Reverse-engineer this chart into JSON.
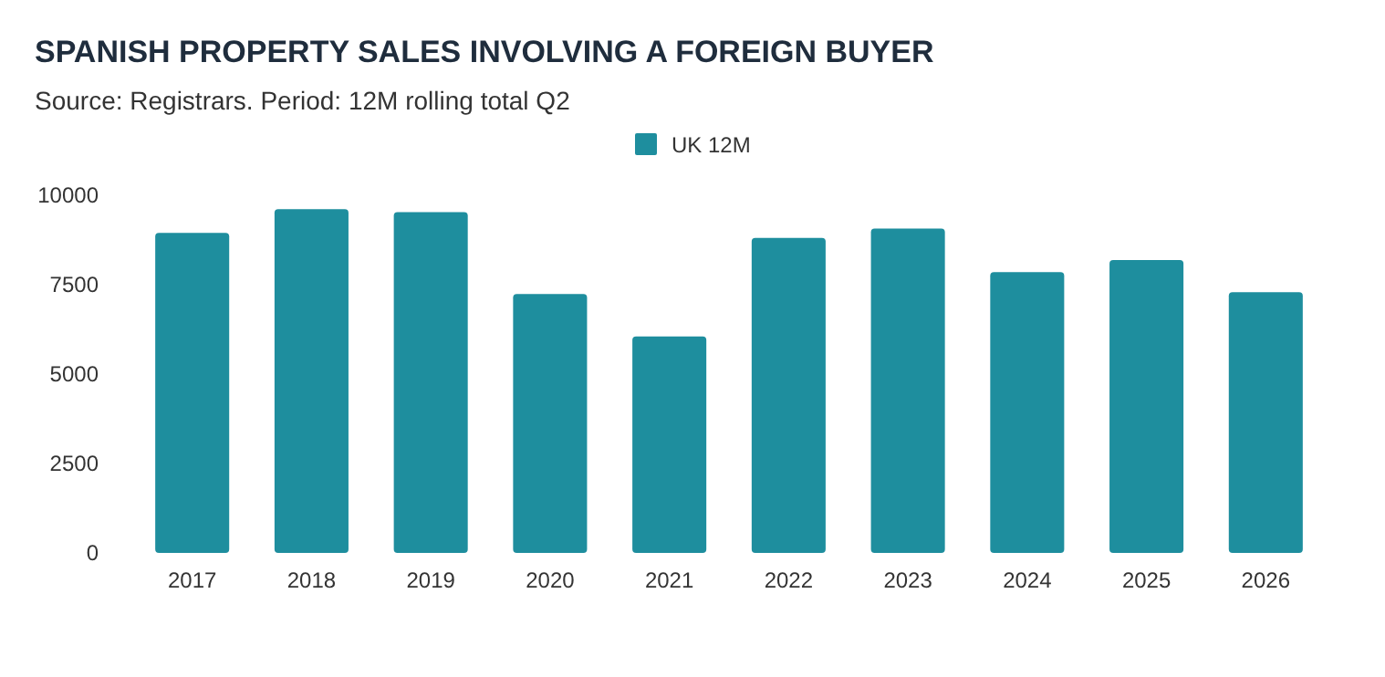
{
  "chart_data": {
    "type": "bar",
    "title": "SPANISH PROPERTY SALES INVOLVING A FOREIGN BUYER",
    "subtitle": "Source: Registrars. Period: 12M rolling total Q2",
    "categories": [
      "2017",
      "2018",
      "2019",
      "2020",
      "2021",
      "2022",
      "2023",
      "2024",
      "2025",
      "2026"
    ],
    "series": [
      {
        "name": "UK 12M",
        "color": "#1e8e9e",
        "values": [
          8950,
          9610,
          9525,
          7240,
          6050,
          8810,
          9070,
          7850,
          8190,
          7290
        ]
      }
    ],
    "ylim": [
      0,
      10000
    ],
    "yticks": [
      0,
      2500,
      5000,
      7500,
      10000
    ],
    "grid": false,
    "legend": "top"
  }
}
